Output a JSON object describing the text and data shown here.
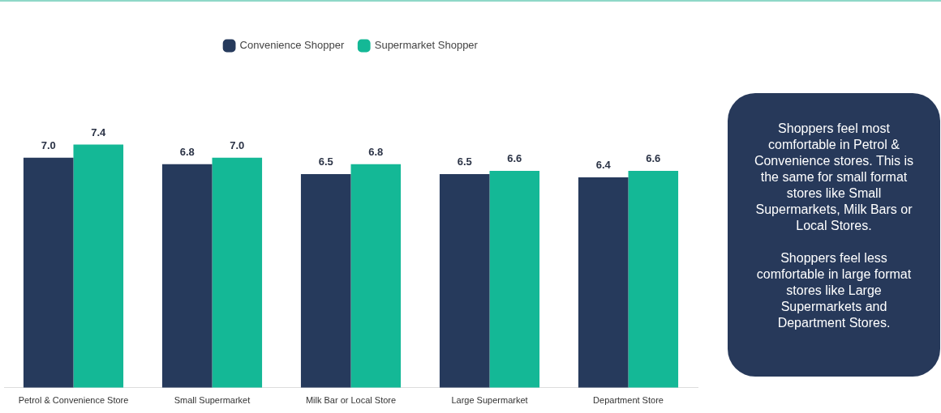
{
  "chart_data": {
    "type": "bar",
    "categories": [
      "Petrol & Convenience Store",
      "Small Supermarket",
      "Milk Bar or Local Store",
      "Large Supermarket",
      "Department Store"
    ],
    "series": [
      {
        "name": "Convenience Shopper",
        "color": "#263a5c",
        "values": [
          7.0,
          6.8,
          6.5,
          6.5,
          6.4
        ],
        "value_labels": [
          "7.0",
          "6.8",
          "6.5",
          "6.5",
          "6.4"
        ]
      },
      {
        "name": "Supermarket Shopper",
        "color": "#14b896",
        "values": [
          7.4,
          7.0,
          6.8,
          6.6,
          6.6
        ],
        "value_labels": [
          "7.4",
          "7.0",
          "6.8",
          "6.6",
          "6.6"
        ]
      }
    ],
    "legend": "top",
    "grid": false,
    "tick_labels": "x",
    "annotations": [
      "Shoppers feel most comfortable in Petrol & Convenience stores. This is the same for small format stores like Small Supermarkets, Milk Bars or Local Stores.",
      "Shoppers feel less comfortable in large format stores like Large Supermarkets and Department Stores."
    ]
  }
}
